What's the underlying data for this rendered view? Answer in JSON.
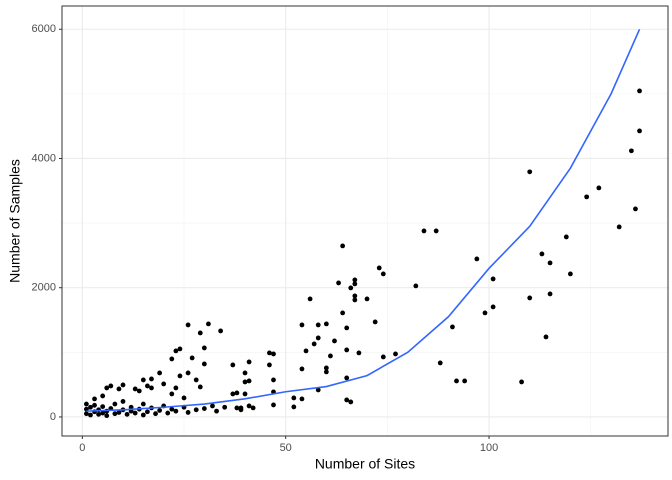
{
  "chart_data": {
    "type": "scatter",
    "x_label": "Number of Sites",
    "y_label": "Number of Samples",
    "xlim": [
      -5,
      144
    ],
    "ylim": [
      -295,
      6360
    ],
    "xticks": [
      0,
      50,
      100
    ],
    "yticks": [
      0,
      2000,
      4000,
      6000
    ],
    "x_minor_grid": [
      25,
      75,
      125
    ],
    "y_minor_grid": [
      1000,
      3000,
      5000
    ],
    "grid": true,
    "series": [
      {
        "color": "#000000",
        "x": [
          137,
          137,
          135,
          136,
          132,
          127,
          124,
          119,
          120,
          115,
          113,
          115,
          114,
          108,
          110,
          110,
          101,
          101,
          99,
          97,
          91,
          94,
          92,
          88,
          87,
          84,
          82,
          77,
          74,
          74,
          73,
          72,
          70,
          68,
          67,
          67,
          67,
          67,
          66,
          65,
          64,
          63,
          64,
          65,
          65,
          66,
          65,
          62,
          61,
          60,
          60,
          57,
          58,
          60,
          58,
          56,
          55,
          54,
          54,
          52,
          54,
          52,
          58,
          47,
          46,
          46,
          47,
          47,
          47,
          41,
          40,
          41,
          40,
          40,
          41,
          39,
          37,
          38,
          37,
          38,
          34,
          31,
          30,
          30,
          29,
          26,
          28,
          29,
          27,
          26,
          25,
          24,
          23,
          24,
          23,
          22,
          22,
          20,
          19,
          17,
          17,
          16,
          15,
          14,
          13,
          10,
          9,
          7,
          6,
          5,
          3,
          1,
          1,
          1,
          2,
          2,
          3,
          3,
          4,
          4,
          5,
          5,
          6,
          6,
          7,
          8,
          8,
          9,
          10,
          10,
          11,
          12,
          12,
          13,
          14,
          15,
          15,
          16,
          17,
          18,
          19,
          20,
          21,
          22,
          23,
          25,
          26,
          28,
          30,
          32,
          33,
          35,
          39,
          42
        ],
        "y": [
          5046,
          4427,
          4118,
          3220,
          2941,
          3545,
          3406,
          2786,
          2214,
          2384,
          2523,
          1904,
          1238,
          542,
          3793,
          1842,
          2136,
          1703,
          1610,
          2446,
          1393,
          557,
          557,
          836,
          2879,
          2879,
          2028,
          975,
          929,
          2214,
          2306,
          1470,
          1827,
          991,
          1811,
          1873,
          2059,
          2121,
          1997,
          1037,
          2647,
          2074,
          1610,
          1378,
          604,
          232,
          263,
          1176,
          944,
          697,
          758,
          1130,
          1223,
          1440,
          1424,
          1827,
          1022,
          1424,
          743,
          294,
          279,
          155,
          418,
          975,
          991,
          805,
          573,
          387,
          186,
          851,
          681,
          557,
          542,
          356,
          170,
          139,
          805,
          372,
          356,
          139,
          1331,
          1440,
          1068,
          820,
          1300,
          1424,
          573,
          464,
          913,
          681,
          294,
          1053,
          1022,
          635,
          449,
          898,
          356,
          511,
          681,
          449,
          588,
          480,
          573,
          402,
          433,
          495,
          433,
          480,
          449,
          325,
          279,
          50,
          120,
          200,
          30,
          150,
          80,
          180,
          40,
          110,
          60,
          160,
          20,
          90,
          130,
          50,
          200,
          70,
          110,
          240,
          40,
          90,
          150,
          60,
          120,
          30,
          200,
          80,
          140,
          50,
          100,
          170,
          60,
          120,
          90,
          150,
          70,
          110,
          130,
          170,
          90,
          150,
          110,
          140
        ]
      }
    ],
    "trend": {
      "color": "#3366ff",
      "x": [
        1,
        10,
        20,
        30,
        40,
        50,
        60,
        70,
        80,
        90,
        100,
        110,
        120,
        130,
        137
      ],
      "y": [
        90,
        110,
        150,
        200,
        280,
        390,
        470,
        640,
        1000,
        1550,
        2300,
        2950,
        3850,
        5000,
        6000
      ]
    }
  }
}
